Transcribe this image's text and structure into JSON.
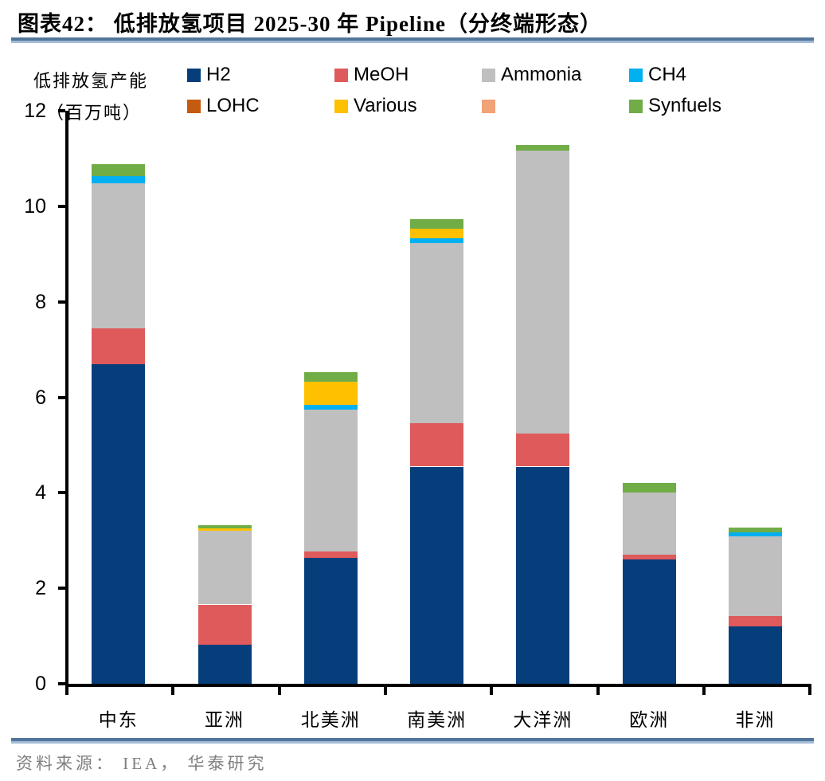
{
  "title": "图表42：  低排放氢项目 2025-30 年 Pipeline（分终端形态）",
  "y_axis": {
    "label_line1": "低排放氢产能",
    "label_line2": "（百万吨）",
    "ticks": [
      0,
      2,
      4,
      6,
      8,
      10,
      12
    ],
    "max": 12
  },
  "source": "资料来源： IEA， 华泰研究",
  "colors": {
    "rule_dark": "#53759c",
    "rule_light": "#a2bbd6",
    "axis": "#000000",
    "source_text": "#7f7f7f"
  },
  "chart_data": {
    "type": "bar",
    "stacked": true,
    "title": "低排放氢项目 2025-30 年 Pipeline（分终端形态）",
    "ylabel": "低排放氢产能（百万吨）",
    "xlabel": "",
    "ylim": [
      0,
      12
    ],
    "yticks": [
      0,
      2,
      4,
      6,
      8,
      10,
      12
    ],
    "grid": false,
    "legend_position": "top",
    "categories": [
      "中东",
      "亚洲",
      "北美洲",
      "南美洲",
      "大洋洲",
      "欧洲",
      "非洲"
    ],
    "series": [
      {
        "name": "H2",
        "color": "#063e7b",
        "values": [
          6.7,
          0.82,
          2.64,
          4.55,
          4.55,
          2.6,
          1.2
        ]
      },
      {
        "name": "MeOH",
        "color": "#df5a5a",
        "values": [
          0.75,
          0.84,
          0.13,
          0.91,
          0.69,
          0.11,
          0.22
        ]
      },
      {
        "name": "Ammonia",
        "color": "#bfbfbf",
        "values": [
          3.03,
          1.54,
          2.98,
          3.77,
          5.93,
          1.3,
          1.67
        ]
      },
      {
        "name": "CH4",
        "color": "#00b0f0",
        "values": [
          0.15,
          0.0,
          0.09,
          0.1,
          0.0,
          0.0,
          0.08
        ]
      },
      {
        "name": "LOHC",
        "color": "#c55a11",
        "values": [
          0.0,
          0.0,
          0.0,
          0.0,
          0.0,
          0.0,
          0.0
        ]
      },
      {
        "name": "Various",
        "color": "#ffc000",
        "values": [
          0.0,
          0.06,
          0.48,
          0.2,
          0.0,
          0.0,
          0.0
        ]
      },
      {
        "name": "",
        "color": "#f1a277",
        "values": [
          0.0,
          0.0,
          0.0,
          0.0,
          0.0,
          0.0,
          0.0
        ]
      },
      {
        "name": "Synfuels",
        "color": "#70ad47",
        "values": [
          0.26,
          0.07,
          0.21,
          0.2,
          0.11,
          0.2,
          0.11
        ]
      }
    ],
    "totals": [
      10.89,
      3.33,
      6.53,
      9.73,
      11.28,
      4.21,
      3.28
    ]
  }
}
